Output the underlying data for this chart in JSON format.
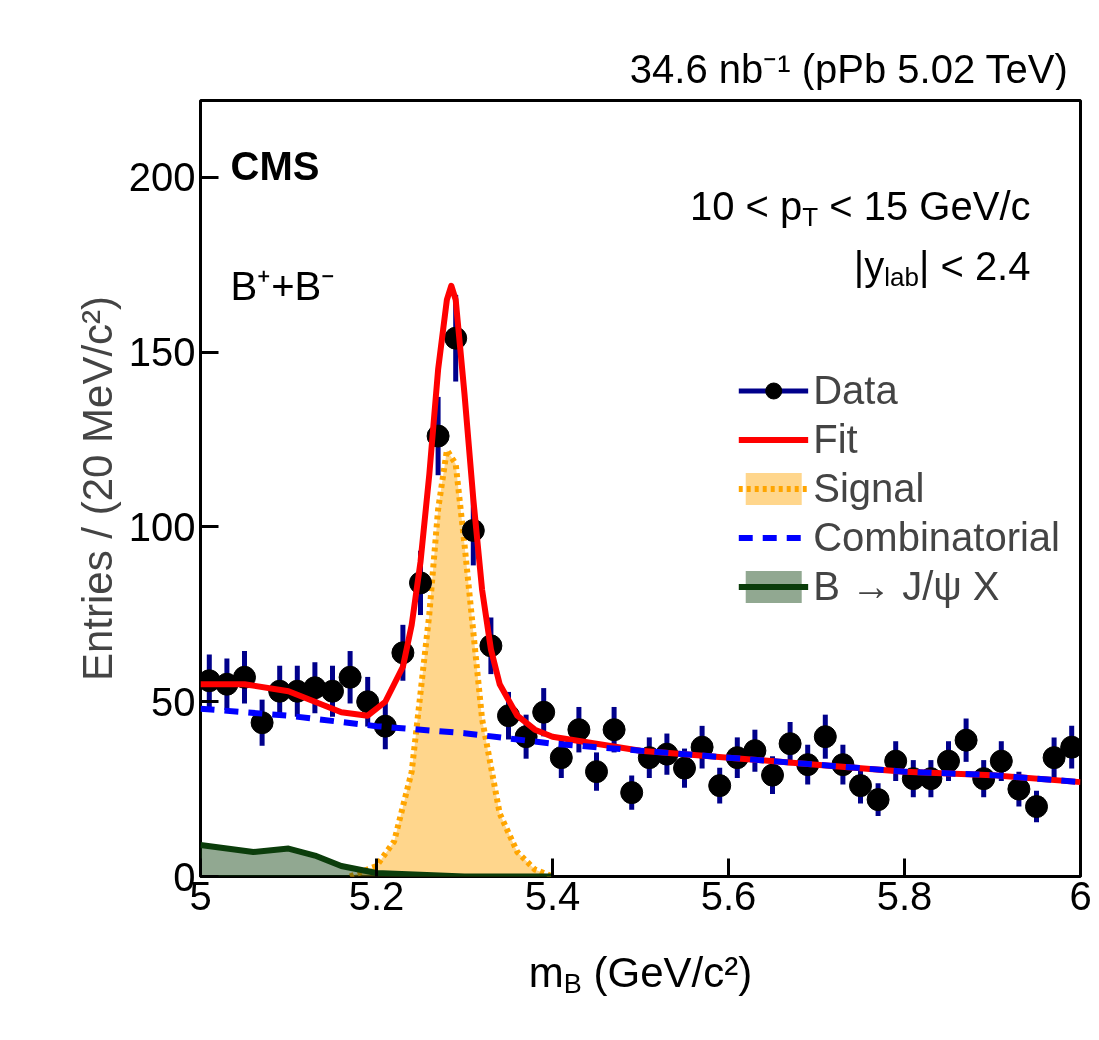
{
  "chart_data": {
    "type": "line",
    "title": "34.6 nb⁻¹ (pPb 5.02 TeV)",
    "xlabel": "m$_{B}$ (GeV/c²)",
    "ylabel": "Entries / (20 MeV/c²)",
    "annotations": [
      "CMS",
      "B⁺+B⁻",
      "10 < p$_{T}$ < 15 GeV/c",
      "|y$_{lab}$| < 2.4"
    ],
    "xlim": [
      5,
      6
    ],
    "ylim": [
      0,
      222
    ],
    "xticks": [
      5,
      5.2,
      5.4,
      5.6,
      5.8,
      6
    ],
    "yticks": [
      0,
      50,
      100,
      150,
      200
    ],
    "grid": false,
    "legend": "right",
    "series": [
      {
        "name": "Data",
        "type": "scatter",
        "color": "#000000",
        "marker": "circle",
        "x": [
          5.01,
          5.03,
          5.05,
          5.07,
          5.09,
          5.11,
          5.13,
          5.15,
          5.17,
          5.19,
          5.21,
          5.23,
          5.25,
          5.27,
          5.29,
          5.31,
          5.33,
          5.35,
          5.37,
          5.39,
          5.41,
          5.43,
          5.45,
          5.47,
          5.49,
          5.51,
          5.53,
          5.55,
          5.57,
          5.59,
          5.61,
          5.63,
          5.65,
          5.67,
          5.69,
          5.71,
          5.73,
          5.75,
          5.77,
          5.79,
          5.81,
          5.83,
          5.85,
          5.87,
          5.89,
          5.91,
          5.93,
          5.95,
          5.97,
          5.99
        ],
        "values": [
          56,
          55,
          57,
          44,
          53,
          53,
          54,
          53,
          57,
          50,
          43,
          64,
          84,
          126,
          154,
          99,
          66,
          46,
          40,
          47,
          34,
          42,
          30,
          42,
          24,
          34,
          35,
          31,
          37,
          26,
          34,
          36,
          29,
          38,
          32,
          40,
          32,
          26,
          22,
          33,
          28,
          28,
          33,
          39,
          28,
          33,
          25,
          20,
          34,
          37
        ],
        "errors": [
          7.5,
          7.4,
          7.5,
          6.6,
          7.3,
          7.3,
          7.3,
          7.3,
          7.5,
          7.1,
          6.6,
          8,
          9.2,
          11.2,
          12.4,
          10,
          8.1,
          6.8,
          6.3,
          6.9,
          5.8,
          6.5,
          5.5,
          6.5,
          4.9,
          5.8,
          5.9,
          5.6,
          6.1,
          5.1,
          5.8,
          6,
          5.4,
          6.2,
          5.7,
          6.3,
          5.7,
          5.1,
          4.7,
          5.7,
          5.3,
          5.3,
          5.7,
          6.2,
          5.3,
          5.7,
          5,
          4.5,
          5.8,
          6.1
        ]
      },
      {
        "name": "Fit",
        "color": "#ff0000",
        "line_style": "solid",
        "x": [
          5.0,
          5.05,
          5.1,
          5.13,
          5.16,
          5.19,
          5.21,
          5.23,
          5.24,
          5.25,
          5.26,
          5.27,
          5.28,
          5.285,
          5.29,
          5.3,
          5.31,
          5.32,
          5.33,
          5.34,
          5.36,
          5.38,
          5.4,
          5.5,
          5.6,
          5.7,
          5.8,
          5.9,
          6.0
        ],
        "values": [
          55,
          55,
          53,
          50,
          47,
          46,
          50,
          60,
          72,
          90,
          115,
          145,
          165,
          169,
          165,
          138,
          108,
          82,
          65,
          55,
          46,
          42,
          40,
          36,
          34,
          32,
          30,
          29,
          27
        ]
      },
      {
        "name": "Signal",
        "type": "area",
        "color": "#ffa500",
        "line_style": "dotted",
        "x": [
          5.17,
          5.2,
          5.22,
          5.24,
          5.26,
          5.27,
          5.28,
          5.29,
          5.3,
          5.31,
          5.32,
          5.34,
          5.36,
          5.38,
          5.4
        ],
        "values": [
          0,
          3,
          10,
          30,
          75,
          105,
          122,
          118,
          95,
          70,
          45,
          18,
          7,
          2,
          0
        ]
      },
      {
        "name": "Combinatorial",
        "color": "#0000ff",
        "line_style": "dashed",
        "x": [
          5.0,
          5.1,
          5.2,
          5.3,
          5.4,
          5.5,
          5.6,
          5.7,
          5.8,
          5.9,
          6.0
        ],
        "values": [
          48,
          46,
          43,
          41,
          38,
          36,
          34,
          32,
          30,
          29,
          27
        ]
      },
      {
        "name": "B → J/ψ X",
        "type": "area",
        "color": "#0b3d0b",
        "x": [
          5.0,
          5.03,
          5.06,
          5.1,
          5.13,
          5.16,
          5.2,
          5.25,
          5.3,
          5.35,
          5.4
        ],
        "values": [
          9,
          8,
          7,
          8,
          6,
          3,
          1,
          0.5,
          0,
          0,
          0
        ]
      }
    ]
  }
}
